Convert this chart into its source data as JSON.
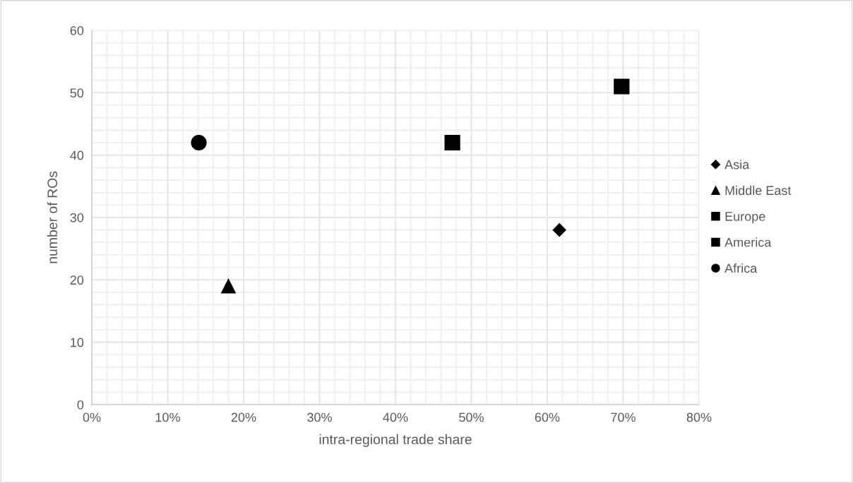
{
  "chart_data": {
    "type": "scatter",
    "xlabel": "intra-regional trade share",
    "ylabel": "number of ROs",
    "series": [
      {
        "name": "Asia",
        "color": "#000000",
        "marker": "diamond",
        "x": [
          0.616
        ],
        "values": [
          28
        ]
      },
      {
        "name": "Middle East",
        "color": "#000000",
        "marker": "triangle",
        "x": [
          0.18
        ],
        "values": [
          19
        ]
      },
      {
        "name": "Europe",
        "color": "#000000",
        "marker": "square",
        "x": [
          0.698
        ],
        "values": [
          51
        ]
      },
      {
        "name": "America",
        "color": "#000000",
        "marker": "square",
        "x": [
          0.475
        ],
        "values": [
          42
        ]
      },
      {
        "name": "Africa",
        "color": "#000000",
        "marker": "circle",
        "x": [
          0.141
        ],
        "values": [
          42
        ]
      }
    ],
    "xlim": [
      0,
      0.8
    ],
    "ylim": [
      0,
      60
    ],
    "xticks": [
      {
        "value": 0,
        "label": "0%"
      },
      {
        "value": 0.1,
        "label": "10%"
      },
      {
        "value": 0.2,
        "label": "20%"
      },
      {
        "value": 0.3,
        "label": "30%"
      },
      {
        "value": 0.4,
        "label": "40%"
      },
      {
        "value": 0.5,
        "label": "50%"
      },
      {
        "value": 0.6,
        "label": "60%"
      },
      {
        "value": 0.7,
        "label": "70%"
      },
      {
        "value": 0.8,
        "label": "80%"
      }
    ],
    "yticks": [
      0,
      10,
      20,
      30,
      40,
      50,
      60
    ],
    "grid": true,
    "legend": "right"
  }
}
